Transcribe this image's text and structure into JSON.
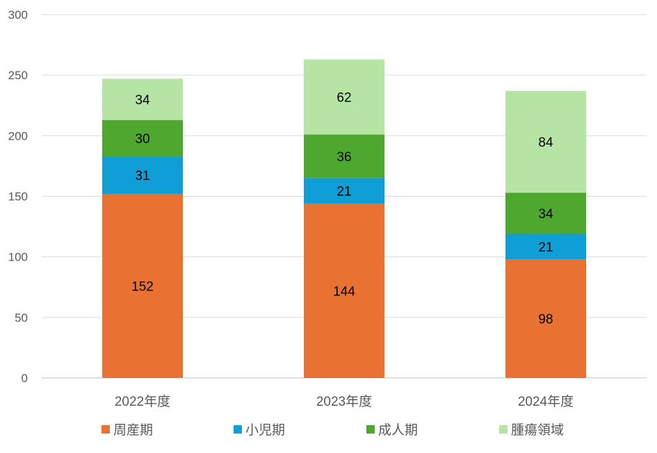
{
  "chart_data": {
    "type": "bar",
    "stacked": true,
    "title": "",
    "xlabel": "",
    "ylabel": "",
    "ylim": [
      0,
      300
    ],
    "yticks": [
      0,
      50,
      100,
      150,
      200,
      250,
      300
    ],
    "grid": true,
    "legend_position": "bottom",
    "categories": [
      "2022年度",
      "2023年度",
      "2024年度"
    ],
    "series": [
      {
        "name": "周産期",
        "color": "#E97132",
        "values": [
          152,
          144,
          98
        ]
      },
      {
        "name": "小児期",
        "color": "#0F9ED5",
        "values": [
          31,
          21,
          21
        ]
      },
      {
        "name": "成人期",
        "color": "#4EA72E",
        "values": [
          30,
          36,
          34
        ]
      },
      {
        "name": "腫瘍領域",
        "color": "#B5E4A4",
        "values": [
          34,
          62,
          84
        ]
      }
    ]
  }
}
